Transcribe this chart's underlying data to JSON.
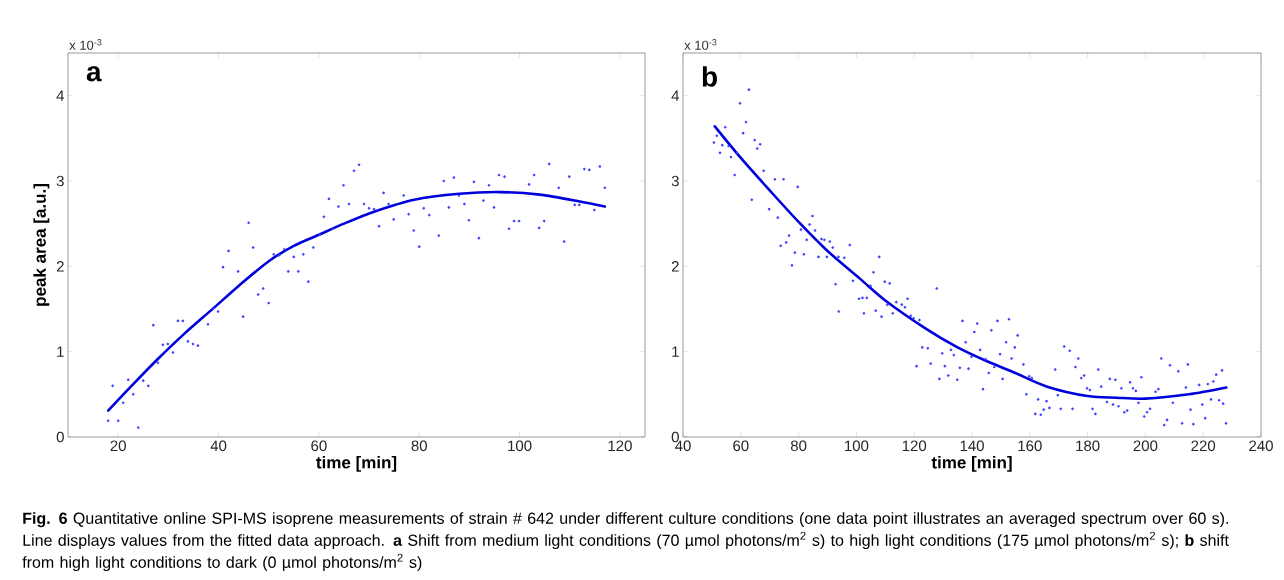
{
  "chart_data": [
    {
      "type": "scatter",
      "title": "a",
      "xlabel": "time [min]",
      "ylabel": "peak area [a.u.]",
      "xlim": [
        10,
        125
      ],
      "ylim": [
        0,
        4.5
      ],
      "xticks": [
        20,
        40,
        60,
        80,
        100,
        120
      ],
      "yticks": [
        0,
        1,
        2,
        3,
        4
      ],
      "annotations": [
        "x 10$^{-3}$",
        "**Fig. 6** Quantitative online SPI-MS isoprene measurements of strain # 642 under different culture conditions (one data point illustrates an averaged spectrum over 60 s). Line displays values from the fitted data approach. **a** Shift from medium light conditions (70 µmol photons/m$^{2}$ s) to high light conditions (175 µmol photons/m$^{2}$ s); **b** shift from high light conditions to dark (0 µmol photons/m$^{2}$ s)"
      ],
      "series": [
        {
          "marker": "circle",
          "color": "#3c3cff",
          "x": [
            18.0,
            18.9,
            20.0,
            21.0,
            22.0,
            23.0,
            24.0,
            25.0,
            26.0,
            27.0,
            27.9,
            28.9,
            29.9,
            30.9,
            31.9,
            32.9,
            33.9,
            34.9,
            35.9,
            37.9,
            38.9,
            39.9,
            40.9,
            42.0,
            43.9,
            44.9,
            46.0,
            46.9,
            47.9,
            48.9,
            50.0,
            51.0,
            52.1,
            53.1,
            53.9,
            55.0,
            55.9,
            56.9,
            57.9,
            58.9,
            60.2,
            61.0,
            62.0,
            62.8,
            63.9,
            64.9,
            66.0,
            67.0,
            68.0,
            69.0,
            70.0,
            71.0,
            72.0,
            72.9,
            73.9,
            74.9,
            76.9,
            77.9,
            78.9,
            80.0,
            80.9,
            82.0,
            83.9,
            84.9,
            85.9,
            86.9,
            87.9,
            89.0,
            89.9,
            90.9,
            91.9,
            92.8,
            93.9,
            94.9,
            95.9,
            97.0,
            97.9,
            98.9,
            99.9,
            101.9,
            102.9,
            103.9,
            104.9,
            105.9,
            107.8,
            108.9,
            109.9,
            111.0,
            111.9,
            112.9,
            113.9,
            114.9,
            116.0,
            117.0
          ],
          "values": [
            0.19,
            0.6,
            0.19,
            0.4,
            0.67,
            0.5,
            0.11,
            0.66,
            0.6,
            1.31,
            0.87,
            1.08,
            1.09,
            0.99,
            1.36,
            1.36,
            1.12,
            1.09,
            1.07,
            1.32,
            1.51,
            1.47,
            1.99,
            2.18,
            1.94,
            1.41,
            2.51,
            2.22,
            1.67,
            1.74,
            1.57,
            2.14,
            2.13,
            2.2,
            1.94,
            2.11,
            1.94,
            2.14,
            1.82,
            2.22,
            2.37,
            2.58,
            2.79,
            2.44,
            2.7,
            2.95,
            2.73,
            3.12,
            3.19,
            2.73,
            2.68,
            2.67,
            2.47,
            2.86,
            2.73,
            2.55,
            2.83,
            2.61,
            2.42,
            2.23,
            2.68,
            2.6,
            2.36,
            3.0,
            2.69,
            3.04,
            2.83,
            2.73,
            2.54,
            2.99,
            2.33,
            2.77,
            2.95,
            2.69,
            3.07,
            3.05,
            2.44,
            2.53,
            2.53,
            2.96,
            3.07,
            2.45,
            2.53,
            3.2,
            2.92,
            2.29,
            3.05,
            2.72,
            2.72,
            3.14,
            3.13,
            2.66,
            3.17,
            2.92
          ]
        },
        {
          "type": "line",
          "color": "#0000dd",
          "x": [
            18,
            23,
            28,
            33,
            39,
            44,
            50,
            55,
            60,
            65,
            71,
            79,
            88,
            96,
            104,
            112,
            117
          ],
          "values": [
            0.31,
            0.62,
            0.92,
            1.2,
            1.51,
            1.77,
            2.06,
            2.24,
            2.37,
            2.5,
            2.64,
            2.78,
            2.85,
            2.87,
            2.84,
            2.76,
            2.7
          ]
        }
      ]
    },
    {
      "type": "scatter",
      "title": "b",
      "xlabel": "time [min]",
      "xlim": [
        40,
        240
      ],
      "ylim": [
        0,
        4.5
      ],
      "xticks": [
        40,
        60,
        80,
        100,
        120,
        140,
        160,
        180,
        200,
        220,
        240
      ],
      "yticks": [
        0,
        1,
        2,
        3,
        4
      ],
      "annotations": [
        "x 10$^{-3}$"
      ],
      "series": [
        {
          "marker": "circle",
          "color": "#3c3cff",
          "x": [
            50.7,
            51.7,
            52.8,
            53.6,
            54.6,
            55.8,
            56.6,
            57.9,
            58.7,
            59.7,
            60.8,
            61.8,
            62.8,
            63.8,
            64.8,
            65.7,
            66.7,
            67.9,
            69.8,
            71.8,
            72.8,
            73.8,
            74.8,
            75.7,
            76.7,
            77.7,
            78.7,
            79.7,
            80.8,
            81.8,
            82.8,
            83.8,
            84.8,
            85.7,
            86.9,
            87.9,
            88.9,
            89.8,
            90.8,
            91.8,
            92.8,
            93.8,
            93.9,
            95.8,
            97.7,
            98.8,
            100.9,
            102.1,
            102.6,
            103.6,
            104.9,
            105.9,
            106.7,
            107.9,
            108.7,
            109.8,
            110.7,
            111.5,
            112.6,
            113.8,
            115.7,
            116.8,
            117.7,
            118.8,
            119.8,
            120.8,
            121.8,
            122.8,
            124.7,
            125.7,
            127.8,
            128.7,
            129.7,
            130.6,
            131.8,
            132.7,
            133.7,
            134.9,
            135.8,
            136.7,
            137.8,
            138.8,
            139.8,
            140.8,
            141.8,
            142.8,
            143.8,
            144.7,
            145.8,
            146.7,
            147.7,
            148.8,
            149.7,
            150.6,
            151.8,
            152.8,
            153.7,
            154.8,
            155.8,
            157.8,
            158.8,
            159.8,
            160.7,
            161.9,
            162.9,
            163.8,
            164.8,
            165.8,
            166.8,
            168.8,
            169.7,
            170.7,
            171.9,
            173.8,
            174.8,
            175.8,
            176.8,
            177.8,
            178.8,
            179.8,
            180.8,
            181.7,
            182.7,
            183.7,
            184.7,
            186.7,
            187.7,
            188.8,
            189.6,
            190.7,
            191.7,
            192.7,
            193.7,
            194.7,
            195.7,
            196.7,
            197.6,
            198.6,
            199.6,
            200.6,
            201.6,
            203.5,
            204.5,
            205.5,
            206.5,
            207.5,
            208.5,
            209.5,
            211.4,
            212.7,
            214.0,
            214.7,
            215.6,
            216.6,
            218.6,
            219.7,
            220.7,
            221.6,
            222.7,
            223.5,
            224.5,
            225.5,
            226.5,
            226.9,
            227.9
          ],
          "values": [
            3.45,
            3.53,
            3.33,
            3.42,
            3.63,
            3.41,
            3.28,
            3.07,
            3.33,
            3.91,
            3.56,
            3.69,
            4.07,
            2.78,
            3.48,
            3.38,
            3.43,
            3.12,
            2.67,
            3.02,
            2.57,
            2.24,
            3.02,
            2.28,
            2.36,
            2.01,
            2.16,
            2.93,
            2.43,
            2.14,
            2.31,
            2.49,
            2.59,
            2.42,
            2.11,
            2.32,
            2.31,
            2.11,
            2.29,
            2.22,
            1.79,
            2.11,
            1.47,
            2.1,
            2.25,
            1.83,
            1.62,
            1.63,
            1.45,
            1.63,
            1.77,
            1.93,
            1.48,
            2.11,
            1.41,
            1.82,
            1.55,
            1.8,
            1.45,
            1.58,
            1.55,
            1.52,
            1.62,
            1.42,
            1.39,
            0.83,
            1.37,
            1.05,
            1.04,
            0.86,
            1.74,
            0.68,
            0.98,
            0.83,
            0.72,
            1.02,
            0.96,
            0.67,
            0.81,
            1.36,
            1.11,
            0.8,
            0.94,
            1.23,
            1.33,
            1.02,
            0.56,
            0.91,
            0.75,
            1.25,
            0.82,
            1.36,
            0.97,
            0.68,
            1.11,
            1.38,
            0.92,
            1.05,
            1.19,
            0.85,
            0.5,
            0.71,
            0.69,
            0.27,
            0.44,
            0.26,
            0.32,
            0.42,
            0.34,
            0.79,
            0.49,
            0.33,
            1.06,
            1.01,
            0.33,
            0.82,
            0.92,
            0.69,
            0.72,
            0.57,
            0.55,
            0.33,
            0.27,
            0.79,
            0.59,
            0.41,
            0.68,
            0.38,
            0.67,
            0.36,
            0.57,
            0.29,
            0.31,
            0.64,
            0.57,
            0.54,
            0.4,
            0.7,
            0.24,
            0.29,
            0.33,
            0.53,
            0.56,
            0.92,
            0.14,
            0.2,
            0.84,
            0.4,
            0.77,
            0.16,
            0.58,
            0.85,
            0.32,
            0.15,
            0.61,
            0.38,
            0.22,
            0.62,
            0.44,
            0.65,
            0.73,
            0.43,
            0.78,
            0.39,
            0.16
          ]
        },
        {
          "type": "line",
          "color": "#0000dd",
          "x": [
            51,
            60,
            70,
            80,
            90,
            101.4,
            110,
            124,
            135,
            145,
            155,
            166,
            180,
            190,
            200,
            215,
            228
          ],
          "values": [
            3.64,
            3.27,
            2.89,
            2.52,
            2.18,
            1.85,
            1.6,
            1.27,
            1.05,
            0.89,
            0.75,
            0.59,
            0.48,
            0.46,
            0.45,
            0.5,
            0.58
          ]
        }
      ]
    }
  ]
}
